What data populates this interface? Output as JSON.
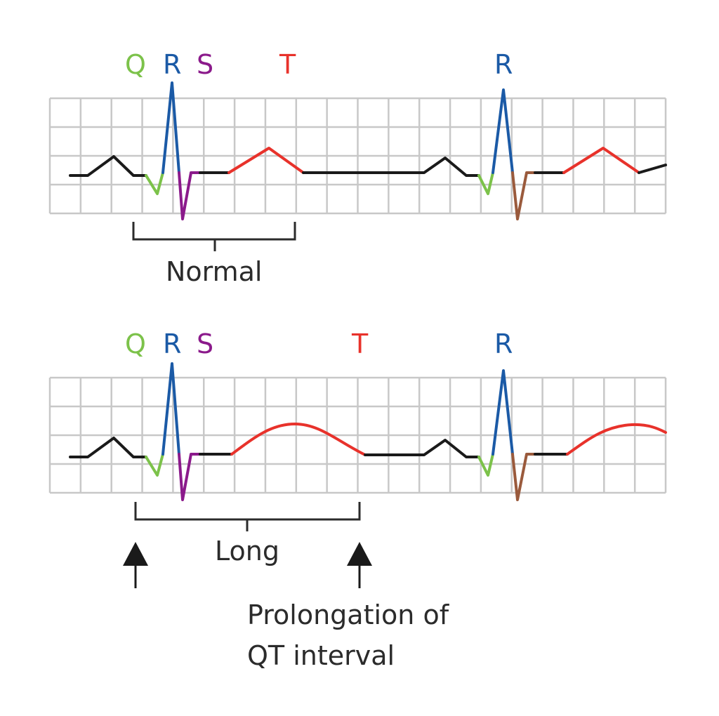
{
  "colors": {
    "q": "#7cc24a",
    "r": "#1b5aa6",
    "s": "#8b1a8b",
    "s_second": "#9a5a3c",
    "t": "#e8322b",
    "baseline": "#1a1a1a",
    "grid": "#c8c8c8",
    "text": "#2b2b2b"
  },
  "normal": {
    "labels": {
      "q": "Q",
      "r": "R",
      "s": "S",
      "t": "T",
      "r2": "R"
    },
    "caption": "Normal"
  },
  "long": {
    "labels": {
      "q": "Q",
      "r": "R",
      "s": "S",
      "t": "T",
      "r2": "R"
    },
    "caption": "Long",
    "note_line1": "Prolongation of",
    "note_line2": "QT interval"
  },
  "icons": [
    "up-arrow-icon",
    "up-arrow-icon"
  ]
}
